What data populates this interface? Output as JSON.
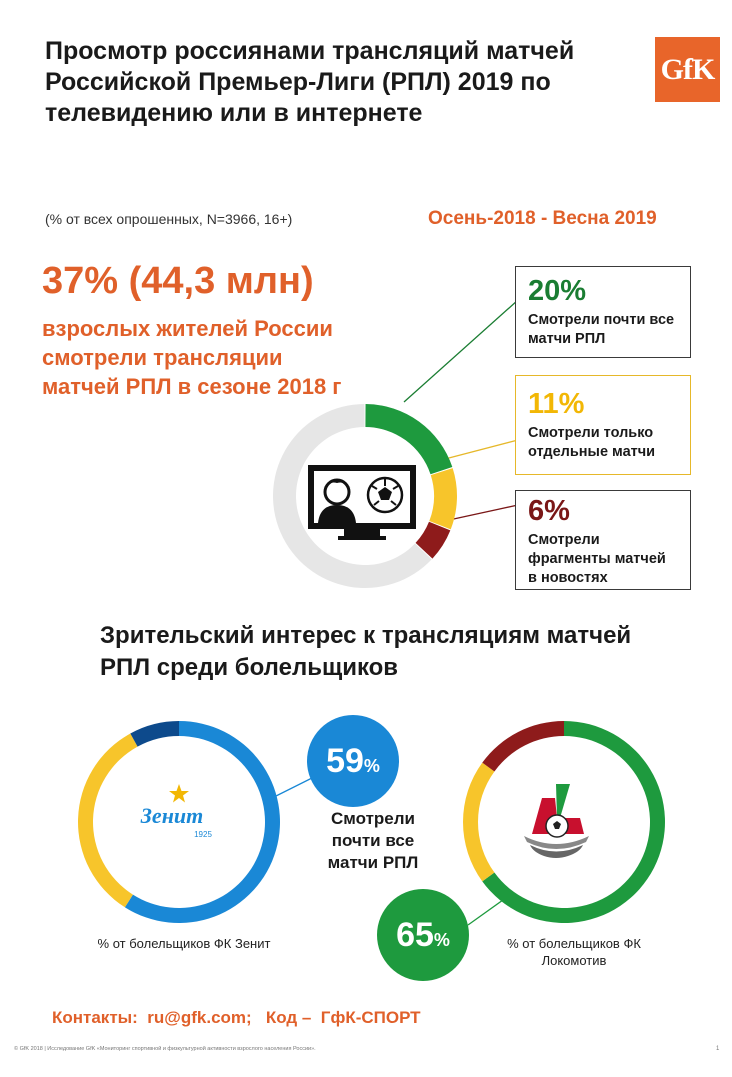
{
  "header": {
    "title": "Просмотр россиянами трансляций матчей Российской Премьер-Лиги (РПЛ) 2019 по телевидению или в интернете",
    "logo_text": "GfK",
    "subtitle": "(% от всех опрошенных,  N=3966, 16+)",
    "period": "Осень-2018 - Весна 2019"
  },
  "summary": {
    "big_stat": "37% (44,3 млн)",
    "description": "взрослых жителей России смотрели трансляции матчей РПЛ в сезоне 2018 г"
  },
  "callouts": [
    {
      "pct": "20%",
      "label": "Смотрели почти все матчи РПЛ"
    },
    {
      "pct": "11%",
      "label": "Смотрели только отдельные матчи"
    },
    {
      "pct": "6%",
      "label": "Смотрели фрагменты матчей в новостях"
    }
  ],
  "fans": {
    "section_title": "Зрительский интерес к трансляциям матчей РПЛ среди болельщиков",
    "watched_label": "Смотрели почти все матчи РПЛ",
    "zenit": {
      "pct": "59",
      "unit": "%",
      "caption": "% от болельщиков ФК Зенит",
      "logo_text": "Зенит",
      "logo_year": "1925"
    },
    "loko": {
      "pct": "65",
      "unit": "%",
      "caption": "% от болельщиков ФК Локомотив"
    }
  },
  "footer": {
    "contacts": "Контакты:  ru@gfk.com;   Код –  ГфК-СПОРТ",
    "footnote": "© GfK 2018 | Исследование GfK «Мониторинг спортивной и физкультурной активности взрослого населения России».",
    "page_number": "1"
  },
  "colors": {
    "green": "#1e9a3e",
    "yellow": "#f7c52b",
    "darkred": "#8e1b1b",
    "gray": "#e6e6e6",
    "blue": "#1a88d6",
    "navy": "#0d4a8c",
    "orange": "#e0602a"
  },
  "chart_data": [
    {
      "type": "pie",
      "name": "rpl-viewing",
      "categories": [
        "Смотрели почти все матчи РПЛ",
        "Смотрели только отдельные матчи",
        "Смотрели фрагменты матчей в новостях",
        ""
      ],
      "values": [
        20,
        11,
        6,
        63
      ]
    },
    {
      "type": "pie",
      "name": "zenit-fans",
      "categories": [
        "",
        "",
        ""
      ],
      "values": [
        59,
        33,
        8
      ]
    },
    {
      "type": "pie",
      "name": "loko-fans",
      "categories": [
        "",
        "",
        ""
      ],
      "values": [
        65,
        20,
        15
      ]
    }
  ]
}
